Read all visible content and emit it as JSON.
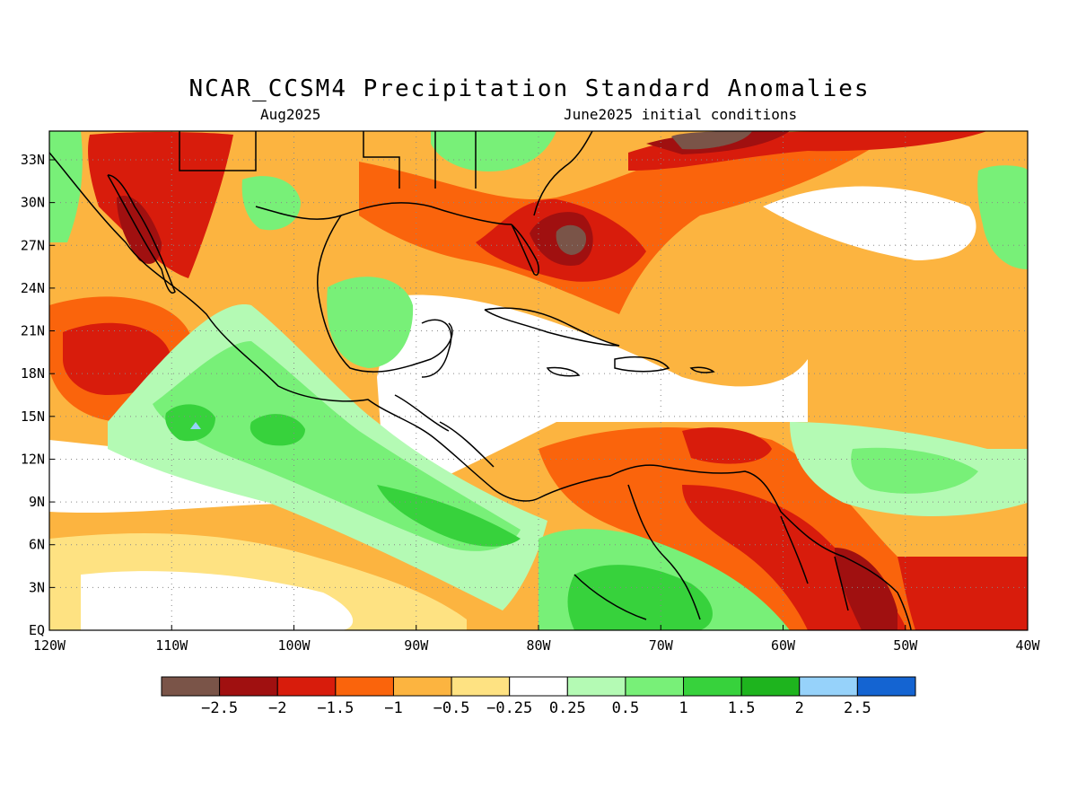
{
  "title": "NCAR_CCSM4 Precipitation Standard Anomalies",
  "subtitle_left": "Aug2025",
  "subtitle_right": "June2025 initial conditions",
  "lat_labels": [
    "33N",
    "30N",
    "27N",
    "24N",
    "21N",
    "18N",
    "15N",
    "12N",
    "9N",
    "6N",
    "3N",
    "EQ"
  ],
  "lon_labels": [
    "120W",
    "110W",
    "100W",
    "90W",
    "80W",
    "70W",
    "60W",
    "50W",
    "40W"
  ],
  "colorbar": {
    "colors": [
      "#7a5448",
      "#a01010",
      "#d81c0c",
      "#fa640c",
      "#fcb440",
      "#fee282",
      "#ffffff",
      "#b4fab4",
      "#78f078",
      "#37d23c",
      "#1eb41e",
      "#96d2fa",
      "#1464d2"
    ],
    "labels": [
      "−2.5",
      "−2",
      "−1.5",
      "−1",
      "−0.5",
      "−0.25",
      "0.25",
      "0.5",
      "1",
      "1.5",
      "2",
      "2.5"
    ]
  },
  "map_colors": {
    "light_orange": "#fcb440",
    "orange": "#fa640c",
    "red": "#d81c0c",
    "dark_red": "#a01010",
    "brown": "#7a5448",
    "yellow": "#fee282",
    "white": "#ffffff",
    "light_green": "#b4fab4",
    "green": "#78f078",
    "med_green": "#37d23c",
    "dark_green": "#1eb41e",
    "light_blue": "#96d2fa"
  }
}
